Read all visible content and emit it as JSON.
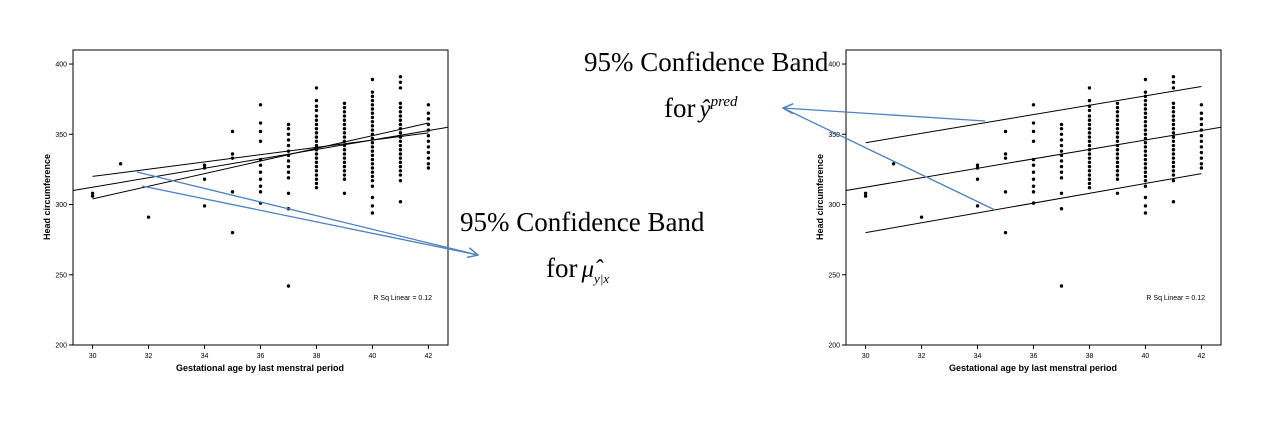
{
  "chart_data": [
    {
      "type": "scatter",
      "xlabel": "Gestational age by last menstral period",
      "ylabel": "Head circumference",
      "xlim": [
        29.3,
        42.7
      ],
      "ylim": [
        200,
        410
      ],
      "xticks": [
        30,
        32,
        34,
        36,
        38,
        40,
        42
      ],
      "yticks": [
        200,
        250,
        300,
        350,
        400
      ],
      "grid": false,
      "annotation": "R Sq Linear = 0.12",
      "lines": [
        {
          "role": "fit",
          "x1": 29.3,
          "y1": 310,
          "x2": 42.7,
          "y2": 355
        },
        {
          "role": "ci-upper",
          "x1": 30,
          "y1": 320,
          "x2": 42,
          "y2": 351
        },
        {
          "role": "ci-lower",
          "x1": 30,
          "y1": 304,
          "x2": 42,
          "y2": 358
        }
      ],
      "points": [
        [
          30,
          306
        ],
        [
          30,
          308
        ],
        [
          31,
          329
        ],
        [
          32,
          291
        ],
        [
          34,
          326
        ],
        [
          34,
          328
        ],
        [
          34,
          318
        ],
        [
          34,
          299
        ],
        [
          35,
          352
        ],
        [
          35,
          336
        ],
        [
          35,
          333
        ],
        [
          35,
          309
        ],
        [
          35,
          280
        ],
        [
          36,
          371
        ],
        [
          36,
          358
        ],
        [
          36,
          352
        ],
        [
          36,
          345
        ],
        [
          36,
          332
        ],
        [
          36,
          328
        ],
        [
          36,
          323
        ],
        [
          36,
          318
        ],
        [
          36,
          313
        ],
        [
          36,
          309
        ],
        [
          36,
          301
        ],
        [
          37,
          357
        ],
        [
          37,
          354
        ],
        [
          37,
          350
        ],
        [
          37,
          346
        ],
        [
          37,
          342
        ],
        [
          37,
          338
        ],
        [
          37,
          335
        ],
        [
          37,
          331
        ],
        [
          37,
          327
        ],
        [
          37,
          323
        ],
        [
          37,
          319
        ],
        [
          37,
          308
        ],
        [
          37,
          297
        ],
        [
          37,
          242
        ],
        [
          38,
          383
        ],
        [
          38,
          374
        ],
        [
          38,
          370
        ],
        [
          38,
          367
        ],
        [
          38,
          363
        ],
        [
          38,
          360
        ],
        [
          38,
          357
        ],
        [
          38,
          354
        ],
        [
          38,
          351
        ],
        [
          38,
          348
        ],
        [
          38,
          345
        ],
        [
          38,
          342
        ],
        [
          38,
          339
        ],
        [
          38,
          336
        ],
        [
          38,
          333
        ],
        [
          38,
          330
        ],
        [
          38,
          327
        ],
        [
          38,
          324
        ],
        [
          38,
          321
        ],
        [
          38,
          318
        ],
        [
          38,
          315
        ],
        [
          38,
          312
        ],
        [
          39,
          372
        ],
        [
          39,
          369
        ],
        [
          39,
          366
        ],
        [
          39,
          363
        ],
        [
          39,
          360
        ],
        [
          39,
          357
        ],
        [
          39,
          354
        ],
        [
          39,
          351
        ],
        [
          39,
          348
        ],
        [
          39,
          345
        ],
        [
          39,
          342
        ],
        [
          39,
          339
        ],
        [
          39,
          336
        ],
        [
          39,
          333
        ],
        [
          39,
          330
        ],
        [
          39,
          327
        ],
        [
          39,
          324
        ],
        [
          39,
          321
        ],
        [
          39,
          318
        ],
        [
          39,
          308
        ],
        [
          40,
          389
        ],
        [
          40,
          380
        ],
        [
          40,
          377
        ],
        [
          40,
          374
        ],
        [
          40,
          371
        ],
        [
          40,
          368
        ],
        [
          40,
          365
        ],
        [
          40,
          362
        ],
        [
          40,
          359
        ],
        [
          40,
          356
        ],
        [
          40,
          353
        ],
        [
          40,
          350
        ],
        [
          40,
          347
        ],
        [
          40,
          344
        ],
        [
          40,
          341
        ],
        [
          40,
          338
        ],
        [
          40,
          335
        ],
        [
          40,
          332
        ],
        [
          40,
          329
        ],
        [
          40,
          326
        ],
        [
          40,
          323
        ],
        [
          40,
          320
        ],
        [
          40,
          317
        ],
        [
          40,
          313
        ],
        [
          40,
          305
        ],
        [
          40,
          299
        ],
        [
          40,
          294
        ],
        [
          41,
          391
        ],
        [
          41,
          387
        ],
        [
          41,
          383
        ],
        [
          41,
          372
        ],
        [
          41,
          369
        ],
        [
          41,
          366
        ],
        [
          41,
          363
        ],
        [
          41,
          360
        ],
        [
          41,
          357
        ],
        [
          41,
          354
        ],
        [
          41,
          351
        ],
        [
          41,
          348
        ],
        [
          41,
          345
        ],
        [
          41,
          342
        ],
        [
          41,
          339
        ],
        [
          41,
          336
        ],
        [
          41,
          333
        ],
        [
          41,
          330
        ],
        [
          41,
          327
        ],
        [
          41,
          324
        ],
        [
          41,
          321
        ],
        [
          41,
          317
        ],
        [
          41,
          302
        ],
        [
          42,
          371
        ],
        [
          42,
          365
        ],
        [
          42,
          361
        ],
        [
          42,
          357
        ],
        [
          42,
          353
        ],
        [
          42,
          349
        ],
        [
          42,
          345
        ],
        [
          42,
          341
        ],
        [
          42,
          337
        ],
        [
          42,
          333
        ],
        [
          42,
          329
        ],
        [
          42,
          326
        ]
      ]
    },
    {
      "type": "scatter",
      "xlabel": "Gestational age by last menstral period",
      "ylabel": "Head circumference",
      "xlim": [
        29.3,
        42.7
      ],
      "ylim": [
        200,
        410
      ],
      "xticks": [
        30,
        32,
        34,
        36,
        38,
        40,
        42
      ],
      "yticks": [
        200,
        250,
        300,
        350,
        400
      ],
      "grid": false,
      "annotation": "R Sq Linear = 0.12",
      "lines": [
        {
          "role": "fit",
          "x1": 29.3,
          "y1": 310,
          "x2": 42.7,
          "y2": 355
        },
        {
          "role": "pi-upper",
          "x1": 30,
          "y1": 344,
          "x2": 42,
          "y2": 384
        },
        {
          "role": "pi-lower",
          "x1": 30,
          "y1": 280,
          "x2": 42,
          "y2": 322
        }
      ],
      "points": [
        [
          30,
          306
        ],
        [
          30,
          308
        ],
        [
          31,
          329
        ],
        [
          32,
          291
        ],
        [
          34,
          326
        ],
        [
          34,
          328
        ],
        [
          34,
          318
        ],
        [
          34,
          299
        ],
        [
          35,
          352
        ],
        [
          35,
          336
        ],
        [
          35,
          333
        ],
        [
          35,
          309
        ],
        [
          35,
          280
        ],
        [
          36,
          371
        ],
        [
          36,
          358
        ],
        [
          36,
          352
        ],
        [
          36,
          345
        ],
        [
          36,
          332
        ],
        [
          36,
          328
        ],
        [
          36,
          323
        ],
        [
          36,
          318
        ],
        [
          36,
          313
        ],
        [
          36,
          309
        ],
        [
          36,
          301
        ],
        [
          37,
          357
        ],
        [
          37,
          354
        ],
        [
          37,
          350
        ],
        [
          37,
          346
        ],
        [
          37,
          342
        ],
        [
          37,
          338
        ],
        [
          37,
          335
        ],
        [
          37,
          331
        ],
        [
          37,
          327
        ],
        [
          37,
          323
        ],
        [
          37,
          319
        ],
        [
          37,
          308
        ],
        [
          37,
          297
        ],
        [
          37,
          242
        ],
        [
          38,
          383
        ],
        [
          38,
          374
        ],
        [
          38,
          370
        ],
        [
          38,
          367
        ],
        [
          38,
          363
        ],
        [
          38,
          360
        ],
        [
          38,
          357
        ],
        [
          38,
          354
        ],
        [
          38,
          351
        ],
        [
          38,
          348
        ],
        [
          38,
          345
        ],
        [
          38,
          342
        ],
        [
          38,
          339
        ],
        [
          38,
          336
        ],
        [
          38,
          333
        ],
        [
          38,
          330
        ],
        [
          38,
          327
        ],
        [
          38,
          324
        ],
        [
          38,
          321
        ],
        [
          38,
          318
        ],
        [
          38,
          315
        ],
        [
          38,
          312
        ],
        [
          39,
          372
        ],
        [
          39,
          369
        ],
        [
          39,
          366
        ],
        [
          39,
          363
        ],
        [
          39,
          360
        ],
        [
          39,
          357
        ],
        [
          39,
          354
        ],
        [
          39,
          351
        ],
        [
          39,
          348
        ],
        [
          39,
          345
        ],
        [
          39,
          342
        ],
        [
          39,
          339
        ],
        [
          39,
          336
        ],
        [
          39,
          333
        ],
        [
          39,
          330
        ],
        [
          39,
          327
        ],
        [
          39,
          324
        ],
        [
          39,
          321
        ],
        [
          39,
          318
        ],
        [
          39,
          308
        ],
        [
          40,
          389
        ],
        [
          40,
          380
        ],
        [
          40,
          377
        ],
        [
          40,
          374
        ],
        [
          40,
          371
        ],
        [
          40,
          368
        ],
        [
          40,
          365
        ],
        [
          40,
          362
        ],
        [
          40,
          359
        ],
        [
          40,
          356
        ],
        [
          40,
          353
        ],
        [
          40,
          350
        ],
        [
          40,
          347
        ],
        [
          40,
          344
        ],
        [
          40,
          341
        ],
        [
          40,
          338
        ],
        [
          40,
          335
        ],
        [
          40,
          332
        ],
        [
          40,
          329
        ],
        [
          40,
          326
        ],
        [
          40,
          323
        ],
        [
          40,
          320
        ],
        [
          40,
          317
        ],
        [
          40,
          313
        ],
        [
          40,
          305
        ],
        [
          40,
          299
        ],
        [
          40,
          294
        ],
        [
          41,
          391
        ],
        [
          41,
          387
        ],
        [
          41,
          383
        ],
        [
          41,
          372
        ],
        [
          41,
          369
        ],
        [
          41,
          366
        ],
        [
          41,
          363
        ],
        [
          41,
          360
        ],
        [
          41,
          357
        ],
        [
          41,
          354
        ],
        [
          41,
          351
        ],
        [
          41,
          348
        ],
        [
          41,
          345
        ],
        [
          41,
          342
        ],
        [
          41,
          339
        ],
        [
          41,
          336
        ],
        [
          41,
          333
        ],
        [
          41,
          330
        ],
        [
          41,
          327
        ],
        [
          41,
          324
        ],
        [
          41,
          321
        ],
        [
          41,
          317
        ],
        [
          41,
          302
        ],
        [
          42,
          371
        ],
        [
          42,
          365
        ],
        [
          42,
          361
        ],
        [
          42,
          357
        ],
        [
          42,
          353
        ],
        [
          42,
          349
        ],
        [
          42,
          345
        ],
        [
          42,
          341
        ],
        [
          42,
          337
        ],
        [
          42,
          333
        ],
        [
          42,
          329
        ],
        [
          42,
          326
        ]
      ]
    }
  ],
  "annotations": {
    "pred_band": {
      "title": "95% Confidence Band",
      "for": "for",
      "symbol": "ŷ",
      "superscript": "pred"
    },
    "mean_band": {
      "title": "95% Confidence Band",
      "for": "for",
      "symbol": "μ̂",
      "subscript": "y|x"
    }
  },
  "colors": {
    "arrow": "#4f81bd",
    "ink": "#000000",
    "frame": "#000000"
  }
}
